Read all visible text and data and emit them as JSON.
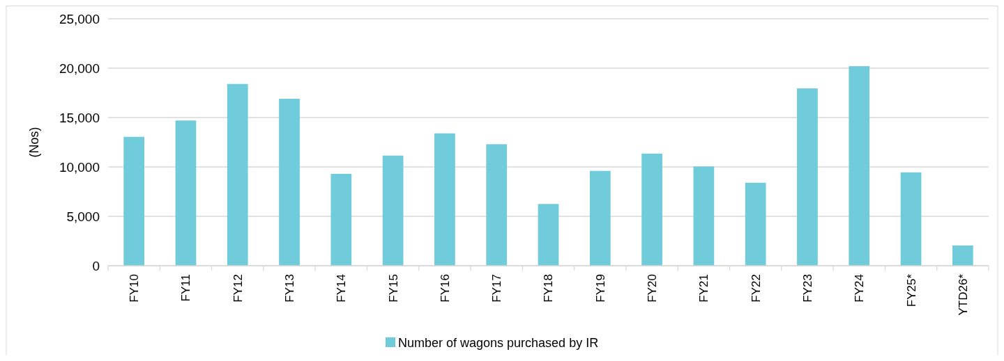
{
  "chart_data": {
    "type": "bar",
    "ylabel": "(Nos)",
    "categories": [
      "FY10",
      "FY11",
      "FY12",
      "FY13",
      "FY14",
      "FY15",
      "FY16",
      "FY17",
      "FY18",
      "FY19",
      "FY20",
      "FY21",
      "FY22",
      "FY23",
      "FY24",
      "FY25*",
      "YTD26*"
    ],
    "series": [
      {
        "name": "Number of wagons purchased by IR",
        "color": "#70cbdb",
        "values": [
          13050,
          14700,
          18400,
          16900,
          9300,
          11150,
          13400,
          12300,
          6250,
          9600,
          11350,
          10050,
          8400,
          17950,
          20200,
          9450,
          2050
        ]
      }
    ],
    "ylim": [
      0,
      25000
    ],
    "yticks": [
      {
        "value": 0,
        "label": "0"
      },
      {
        "value": 5000,
        "label": "5,000"
      },
      {
        "value": 10000,
        "label": "10,000"
      },
      {
        "value": 15000,
        "label": "15,000"
      },
      {
        "value": 20000,
        "label": "20,000"
      },
      {
        "value": 25000,
        "label": "25,000"
      }
    ],
    "grid": "y",
    "legend": "bottom"
  }
}
